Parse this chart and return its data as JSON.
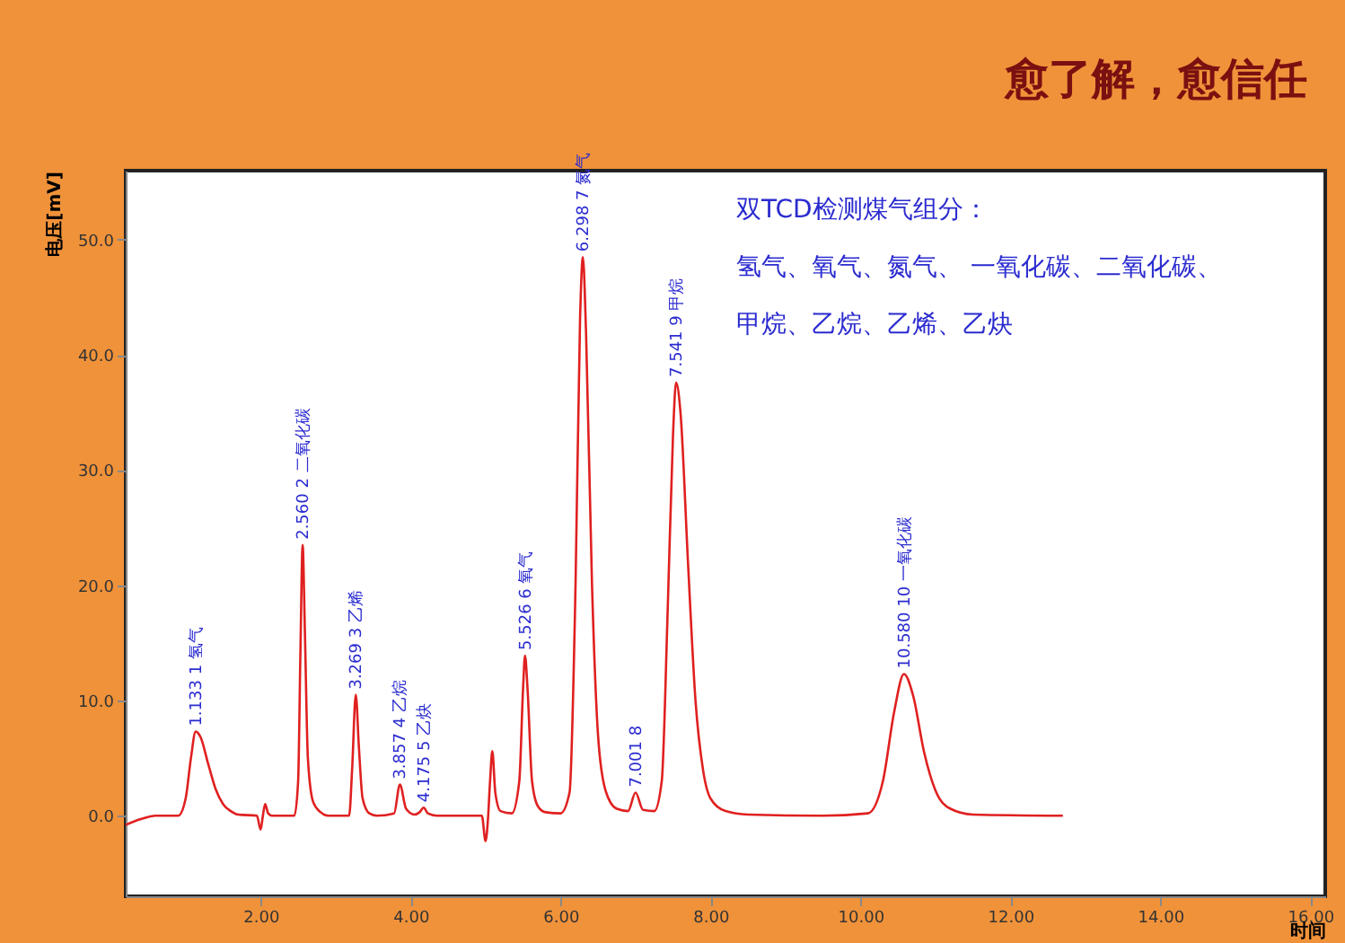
{
  "chart_data": {
    "type": "line",
    "title": "愈了解，愈信任",
    "xlabel": "时间",
    "ylabel": "电压[mV]",
    "xlim": [
      0.2,
      16.2
    ],
    "ylim": [
      -7,
      56
    ],
    "xticks": [
      {
        "value": 2,
        "label": "2.00"
      },
      {
        "value": 4,
        "label": "4.00"
      },
      {
        "value": 6,
        "label": "6.00"
      },
      {
        "value": 8,
        "label": "8.00"
      },
      {
        "value": 10,
        "label": "10.00"
      },
      {
        "value": 12,
        "label": "12.00"
      },
      {
        "value": 14,
        "label": "14.00"
      },
      {
        "value": 16,
        "label": "16.00"
      }
    ],
    "yticks": [
      {
        "value": 0,
        "label": "0.0"
      },
      {
        "value": 10,
        "label": "10.0"
      },
      {
        "value": 20,
        "label": "20.0"
      },
      {
        "value": 30,
        "label": "30.0"
      },
      {
        "value": 40,
        "label": "40.0"
      },
      {
        "value": 50,
        "label": "50.0"
      }
    ],
    "grid": false,
    "marker": "none",
    "line_style": "solid",
    "series": [
      {
        "color": "#e02020",
        "x": [
          0.2,
          0.4,
          0.6,
          0.9,
          1.0,
          1.07,
          1.133,
          1.2,
          1.3,
          1.4,
          1.5,
          1.6,
          1.7,
          1.95,
          2.0,
          2.03,
          2.06,
          2.1,
          2.15,
          2.45,
          2.5,
          2.53,
          2.56,
          2.59,
          2.63,
          2.7,
          2.8,
          2.9,
          3.18,
          3.22,
          3.269,
          3.31,
          3.36,
          3.45,
          3.55,
          3.78,
          3.857,
          3.94,
          4.05,
          4.12,
          4.175,
          4.23,
          4.35,
          4.95,
          5.0,
          5.03,
          5.06,
          5.09,
          5.13,
          5.2,
          5.35,
          5.45,
          5.5,
          5.526,
          5.56,
          5.62,
          5.7,
          5.8,
          6.0,
          6.12,
          6.2,
          6.26,
          6.298,
          6.34,
          6.42,
          6.5,
          6.6,
          6.75,
          6.9,
          7.001,
          7.1,
          7.25,
          7.35,
          7.43,
          7.5,
          7.541,
          7.6,
          7.7,
          7.8,
          7.9,
          8.0,
          8.2,
          8.5,
          9.5,
          10.1,
          10.3,
          10.45,
          10.58,
          10.7,
          10.85,
          11.0,
          11.2,
          11.5,
          12.7
        ],
        "values": [
          -0.8,
          -0.3,
          0,
          0,
          1.5,
          5.0,
          7.3,
          6.8,
          4.5,
          2.3,
          1.0,
          0.4,
          0.1,
          0,
          -1.2,
          0,
          1.0,
          0.2,
          0,
          0,
          3,
          14,
          23.5,
          16,
          5,
          1.2,
          0.3,
          0,
          0,
          4,
          10.5,
          6,
          1.5,
          0.2,
          0,
          0.2,
          2.7,
          0.6,
          0.1,
          0.3,
          0.7,
          0.2,
          0,
          0,
          -2.2,
          -0.5,
          3,
          5.6,
          2,
          0.4,
          0.2,
          3,
          11,
          13.9,
          11,
          3,
          0.8,
          0.3,
          0.2,
          2,
          20,
          43,
          48.5,
          42,
          20,
          7,
          2.2,
          0.6,
          0.4,
          2.0,
          0.5,
          0.4,
          3,
          18,
          33,
          37.6,
          35,
          22,
          10,
          4,
          1.5,
          0.4,
          0.1,
          0,
          0.2,
          3,
          9,
          12.3,
          10.5,
          5.5,
          2.2,
          0.6,
          0.1,
          0
        ]
      }
    ],
    "annotations": [
      "双TCD检测煤气组分：",
      "氢气、氧气、氮气、 一氧化碳、二氧化碳、",
      "甲烷、乙烷、乙烯、乙炔",
      {
        "text": "1.133 1 氢气",
        "x": 1.133,
        "y": 7.3
      },
      {
        "text": "2.560 2 二氧化碳",
        "x": 2.56,
        "y": 23.5
      },
      {
        "text": "3.269 3 乙烯",
        "x": 3.269,
        "y": 10.5
      },
      {
        "text": "3.857 4 乙烷",
        "x": 3.857,
        "y": 2.7
      },
      {
        "text": "4.175 5 乙炔",
        "x": 4.175,
        "y": 0.7
      },
      {
        "text": "5.526 6 氧气",
        "x": 5.526,
        "y": 13.9
      },
      {
        "text": "6.298 7 氮气",
        "x": 6.298,
        "y": 48.5
      },
      {
        "text": "7.001 8",
        "x": 7.001,
        "y": 2.0
      },
      {
        "text": "7.541 9 甲烷",
        "x": 7.541,
        "y": 37.6
      },
      {
        "text": "10.580 10 一氧化碳",
        "x": 10.58,
        "y": 12.3
      }
    ]
  }
}
